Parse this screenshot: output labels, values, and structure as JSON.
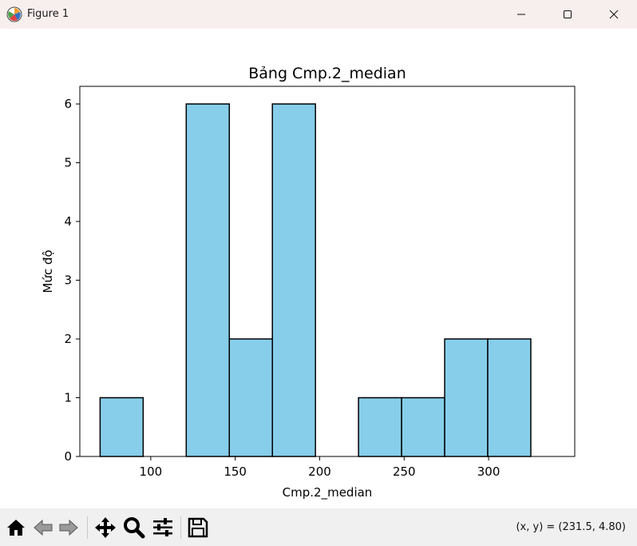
{
  "window": {
    "title": "Figure 1",
    "controls": {
      "minimize": "minimize",
      "maximize": "maximize",
      "close": "close"
    }
  },
  "toolbar": {
    "buttons": [
      {
        "name": "home",
        "icon": "home-icon"
      },
      {
        "name": "back",
        "icon": "back-arrow-icon"
      },
      {
        "name": "forward",
        "icon": "forward-arrow-icon"
      },
      {
        "name": "pan",
        "icon": "move-icon"
      },
      {
        "name": "zoom",
        "icon": "zoom-icon"
      },
      {
        "name": "configure-subplots",
        "icon": "sliders-icon"
      },
      {
        "name": "save",
        "icon": "save-icon"
      }
    ],
    "coords_text": "(x, y) = (231.5, 4.80)"
  },
  "chart_data": {
    "type": "bar",
    "title": "Bảng Cmp.2_median",
    "xlabel": "Cmp.2_median",
    "ylabel": "Mức độ",
    "bin_edges": [
      70.0,
      95.5,
      121.0,
      146.5,
      172.0,
      197.5,
      223.0,
      248.5,
      274.0,
      299.5,
      325.0
    ],
    "values": [
      1,
      0,
      6,
      2,
      6,
      0,
      1,
      1,
      2,
      2
    ],
    "xlim": [
      58,
      351
    ],
    "ylim": [
      0,
      6.3
    ],
    "xticks": [
      100,
      150,
      200,
      250,
      300
    ],
    "yticks": [
      0,
      1,
      2,
      3,
      4,
      5,
      6
    ],
    "bar_color": "#87ceeb",
    "edge_color": "#000000",
    "grid": false
  }
}
